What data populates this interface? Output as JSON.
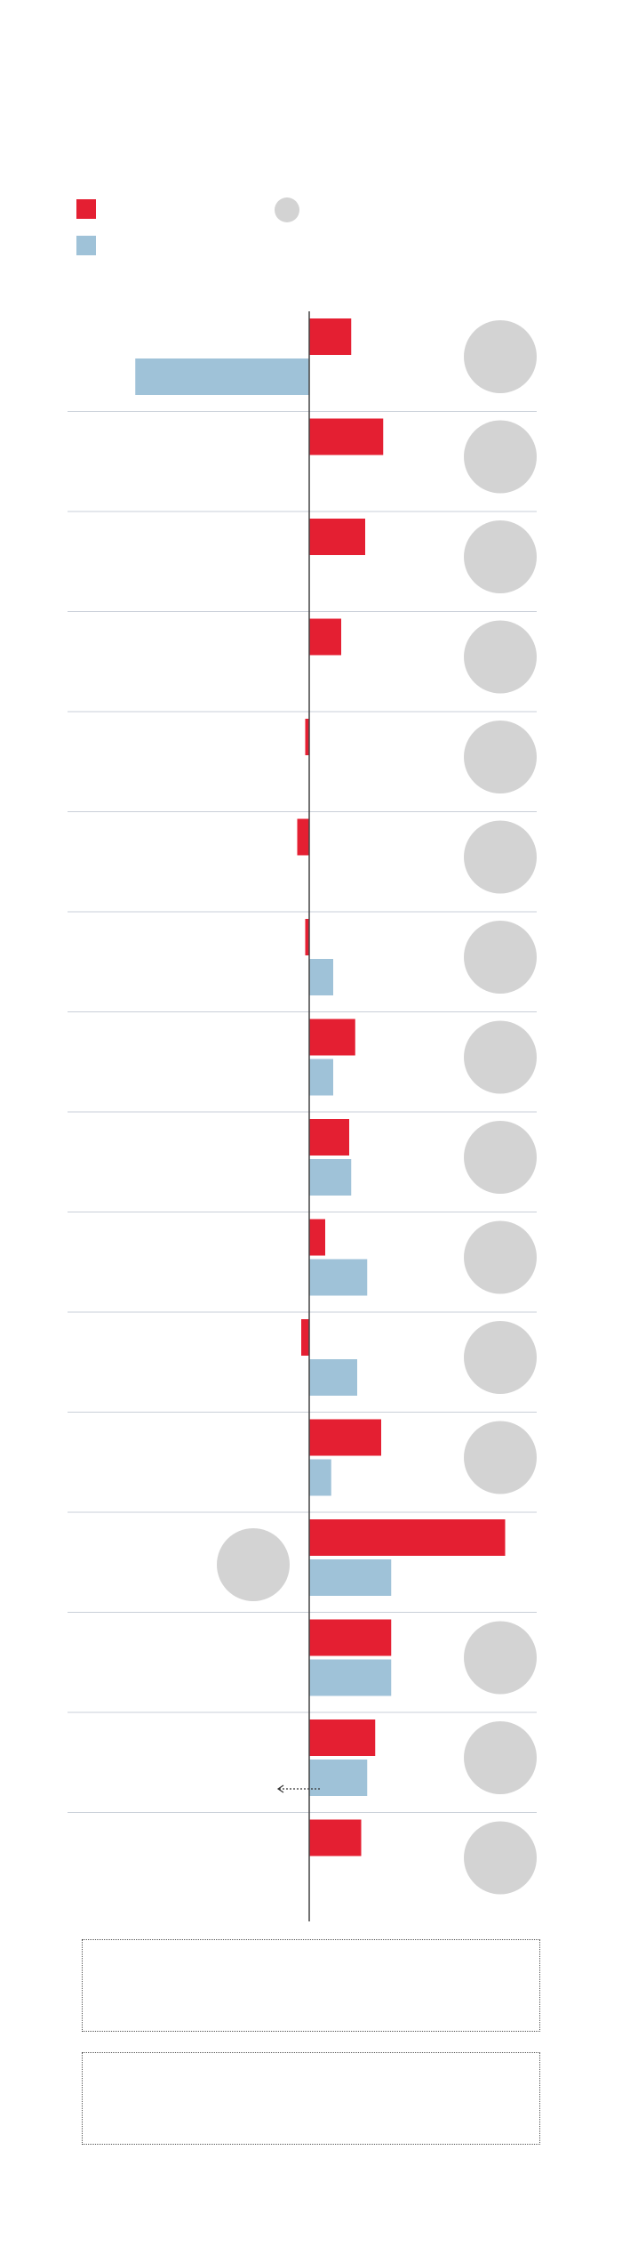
{
  "colors": {
    "series_a": "#e41f32",
    "series_b": "#9fc2d8",
    "circle": "#d3d3d3",
    "axis": "#444444",
    "divider": "#c9cfd8"
  },
  "legend": {
    "items": [
      {
        "swatch": "red-square",
        "color": "#e41f32"
      },
      {
        "swatch": "blue-square",
        "color": "#9fc2d8"
      },
      {
        "swatch": "grey-circle",
        "color": "#d3d3d3"
      }
    ]
  },
  "chart_data": {
    "type": "bar",
    "orientation": "horizontal",
    "grid": false,
    "legend_position": "top-left",
    "row_count": 16,
    "series": [
      {
        "color": "#e41f32",
        "values": [
          10.5,
          18.5,
          14,
          8,
          -1,
          -3,
          -1,
          11.5,
          10,
          4,
          -2,
          18,
          49,
          20.5,
          16.5,
          13
        ]
      },
      {
        "color": "#9fc2d8",
        "values": [
          -43.5,
          null,
          null,
          null,
          null,
          null,
          6,
          6,
          10.5,
          14.5,
          12,
          5.5,
          20.5,
          20.5,
          14.5,
          null
        ]
      }
    ],
    "row_marker": [
      "right-circle",
      "right-circle",
      "right-circle",
      "right-circle",
      "right-circle",
      "right-circle",
      "right-circle",
      "right-circle",
      "right-circle",
      "right-circle",
      "right-circle",
      "right-circle",
      "left-circle",
      "right-circle",
      "right-circle",
      "right-circle"
    ],
    "annotation": {
      "row": 14,
      "type": "dotted-arrow-left"
    }
  },
  "notes": [
    {
      "name": "note-box-1"
    },
    {
      "name": "note-box-2"
    }
  ]
}
